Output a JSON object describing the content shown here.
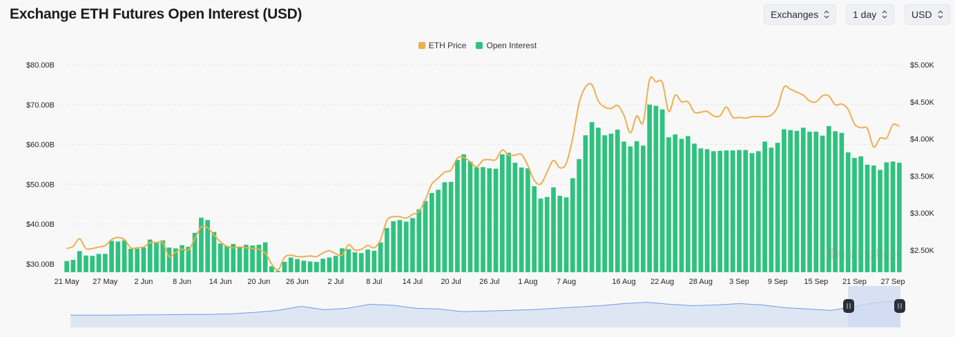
{
  "header": {
    "title": "Exchange ETH Futures Open Interest (USD)"
  },
  "controls": {
    "exchanges": {
      "label": "Exchanges",
      "icon": "chevron-up-down-icon"
    },
    "interval": {
      "label": "1 day",
      "icon": "chevron-up-down-icon"
    },
    "currency": {
      "label": "USD",
      "icon": "chevron-up-down-icon"
    }
  },
  "watermark": "coinglass",
  "colors": {
    "price": "#f0ad4e",
    "open_interest": "#2ec27e",
    "navigator_line": "#6b9be8",
    "navigator_fill": "#dfe6f3",
    "navigator_selection": "#cdd9f3",
    "handle": "#2b2f3a"
  },
  "chart_data": {
    "type": "bar+line",
    "title": "Exchange ETH Futures Open Interest (USD)",
    "legend": {
      "position": "top-center",
      "entries": [
        "ETH Price",
        "Open Interest"
      ]
    },
    "grid": true,
    "y_left": {
      "ticks": [
        "$30.00B",
        "$40.00B",
        "$50.00B",
        "$60.00B",
        "$70.00B",
        "$80.00B"
      ],
      "tick_values": [
        30,
        40,
        50,
        60,
        70,
        80
      ],
      "range": [
        27.9,
        80
      ],
      "unit": "USD billions"
    },
    "y_right": {
      "ticks": [
        "$2.50K",
        "$3.00K",
        "$3.50K",
        "$4.00K",
        "$4.50K",
        "$5.00K"
      ],
      "tick_values": [
        2500,
        3000,
        3500,
        4000,
        4500,
        5000
      ],
      "range": [
        2200,
        5000
      ],
      "unit": "USD"
    },
    "x_ticks": [
      "21 May",
      "27 May",
      "2 Jun",
      "8 Jun",
      "14 Jun",
      "20 Jun",
      "26 Jun",
      "2 Jul",
      "8 Jul",
      "14 Jul",
      "20 Jul",
      "26 Jul",
      "1 Aug",
      "7 Aug",
      "16 Aug",
      "22 Aug",
      "28 Aug",
      "3 Sep",
      "9 Sep",
      "15 Sep",
      "21 Sep",
      "27 Sep"
    ],
    "categories": [
      "21 May",
      "22 May",
      "23 May",
      "24 May",
      "25 May",
      "26 May",
      "27 May",
      "28 May",
      "29 May",
      "30 May",
      "31 May",
      "1 Jun",
      "2 Jun",
      "3 Jun",
      "4 Jun",
      "5 Jun",
      "6 Jun",
      "7 Jun",
      "8 Jun",
      "9 Jun",
      "10 Jun",
      "11 Jun",
      "12 Jun",
      "13 Jun",
      "14 Jun",
      "15 Jun",
      "16 Jun",
      "17 Jun",
      "18 Jun",
      "19 Jun",
      "20 Jun",
      "21 Jun",
      "22 Jun",
      "23 Jun",
      "24 Jun",
      "25 Jun",
      "26 Jun",
      "27 Jun",
      "28 Jun",
      "29 Jun",
      "30 Jun",
      "1 Jul",
      "2 Jul",
      "3 Jul",
      "4 Jul",
      "5 Jul",
      "6 Jul",
      "7 Jul",
      "8 Jul",
      "9 Jul",
      "10 Jul",
      "11 Jul",
      "12 Jul",
      "13 Jul",
      "14 Jul",
      "15 Jul",
      "16 Jul",
      "17 Jul",
      "18 Jul",
      "19 Jul",
      "20 Jul",
      "21 Jul",
      "22 Jul",
      "23 Jul",
      "24 Jul",
      "25 Jul",
      "26 Jul",
      "27 Jul",
      "28 Jul",
      "29 Jul",
      "30 Jul",
      "31 Jul",
      "1 Aug",
      "2 Aug",
      "3 Aug",
      "4 Aug",
      "5 Aug",
      "6 Aug",
      "7 Aug",
      "8 Aug",
      "9 Aug",
      "10 Aug",
      "11 Aug",
      "12 Aug",
      "13 Aug",
      "14 Aug",
      "15 Aug",
      "16 Aug",
      "17 Aug",
      "18 Aug",
      "19 Aug",
      "20 Aug",
      "21 Aug",
      "22 Aug",
      "23 Aug",
      "24 Aug",
      "25 Aug",
      "26 Aug",
      "27 Aug",
      "28 Aug",
      "29 Aug",
      "30 Aug",
      "31 Aug",
      "1 Sep",
      "2 Sep",
      "3 Sep",
      "4 Sep",
      "5 Sep",
      "6 Sep",
      "7 Sep",
      "8 Sep",
      "9 Sep",
      "10 Sep",
      "11 Sep",
      "12 Sep",
      "13 Sep",
      "14 Sep",
      "15 Sep",
      "16 Sep",
      "17 Sep",
      "18 Sep",
      "19 Sep",
      "20 Sep",
      "21 Sep",
      "22 Sep",
      "23 Sep",
      "24 Sep",
      "25 Sep",
      "26 Sep",
      "27 Sep",
      "28 Sep"
    ],
    "series": [
      {
        "name": "Open Interest",
        "type": "bar",
        "axis": "left",
        "values": [
          30.7,
          31.0,
          33.2,
          32.1,
          32.0,
          32.5,
          32.5,
          35.8,
          35.6,
          35.9,
          33.8,
          33.8,
          34.1,
          36.1,
          35.5,
          35.9,
          34.1,
          33.9,
          34.7,
          34.3,
          37.8,
          41.6,
          41.0,
          38.0,
          35.1,
          34.5,
          35.0,
          34.4,
          34.8,
          34.6,
          34.8,
          35.4,
          29.4,
          28.2,
          30.5,
          31.6,
          31.2,
          30.8,
          30.6,
          30.5,
          31.3,
          31.6,
          32.0,
          33.9,
          33.7,
          32.9,
          32.7,
          33.6,
          33.3,
          35.4,
          39.0,
          40.7,
          41.0,
          40.6,
          41.5,
          43.7,
          45.8,
          47.8,
          48.6,
          50.5,
          50.6,
          56.1,
          57.5,
          55.7,
          54.2,
          54.3,
          54.0,
          53.9,
          57.5,
          57.9,
          55.4,
          54.2,
          54.0,
          49.5,
          46.4,
          46.8,
          49.2,
          47.1,
          46.7,
          51.5,
          56.3,
          62.3,
          65.6,
          64.2,
          62.3,
          62.7,
          63.7,
          60.7,
          59.5,
          60.8,
          59.7,
          70.0,
          69.7,
          68.8,
          61.8,
          62.5,
          61.4,
          62.1,
          60.2,
          59.0,
          58.8,
          58.3,
          58.4,
          58.5,
          58.5,
          58.6,
          58.6,
          57.8,
          58.3,
          60.7,
          59.2,
          60.4,
          63.8,
          63.6,
          63.4,
          64.2,
          63.2,
          63.2,
          62.2,
          64.6,
          63.3,
          62.9,
          58.0,
          56.6,
          57.0,
          54.9,
          54.7,
          53.6,
          55.5,
          55.7,
          55.4
        ]
      },
      {
        "name": "ETH Price",
        "type": "line",
        "axis": "right",
        "values": [
          2520,
          2550,
          2650,
          2520,
          2520,
          2540,
          2560,
          2640,
          2670,
          2640,
          2530,
          2530,
          2540,
          2600,
          2600,
          2600,
          2410,
          2470,
          2510,
          2500,
          2650,
          2810,
          2800,
          2700,
          2610,
          2550,
          2530,
          2540,
          2530,
          2520,
          2510,
          2460,
          2310,
          2230,
          2400,
          2430,
          2410,
          2410,
          2420,
          2410,
          2460,
          2490,
          2450,
          2430,
          2570,
          2500,
          2510,
          2560,
          2530,
          2640,
          2900,
          2950,
          2950,
          2930,
          2980,
          3020,
          3180,
          3390,
          3470,
          3550,
          3580,
          3740,
          3750,
          3690,
          3620,
          3710,
          3720,
          3720,
          3850,
          3780,
          3780,
          3790,
          3640,
          3440,
          3390,
          3550,
          3710,
          3610,
          3670,
          4010,
          4480,
          4700,
          4730,
          4510,
          4430,
          4410,
          4450,
          4320,
          4080,
          4310,
          4220,
          4800,
          4770,
          4760,
          4370,
          4590,
          4500,
          4500,
          4360,
          4360,
          4370,
          4310,
          4310,
          4430,
          4290,
          4290,
          4280,
          4300,
          4300,
          4300,
          4320,
          4430,
          4700,
          4670,
          4630,
          4590,
          4510,
          4500,
          4580,
          4580,
          4460,
          4470,
          4400,
          4200,
          4150,
          4140,
          3890,
          4010,
          4010,
          4190,
          4170
        ]
      }
    ],
    "navigator": {
      "values": [
        20,
        20,
        20,
        21,
        21,
        22,
        22,
        24,
        28,
        34,
        46,
        36,
        40,
        52,
        49,
        40,
        38,
        30,
        32,
        34,
        36,
        40,
        44,
        48,
        54,
        58,
        52,
        48,
        50,
        54,
        50,
        42,
        38,
        34,
        46,
        58,
        62
      ]
    }
  }
}
